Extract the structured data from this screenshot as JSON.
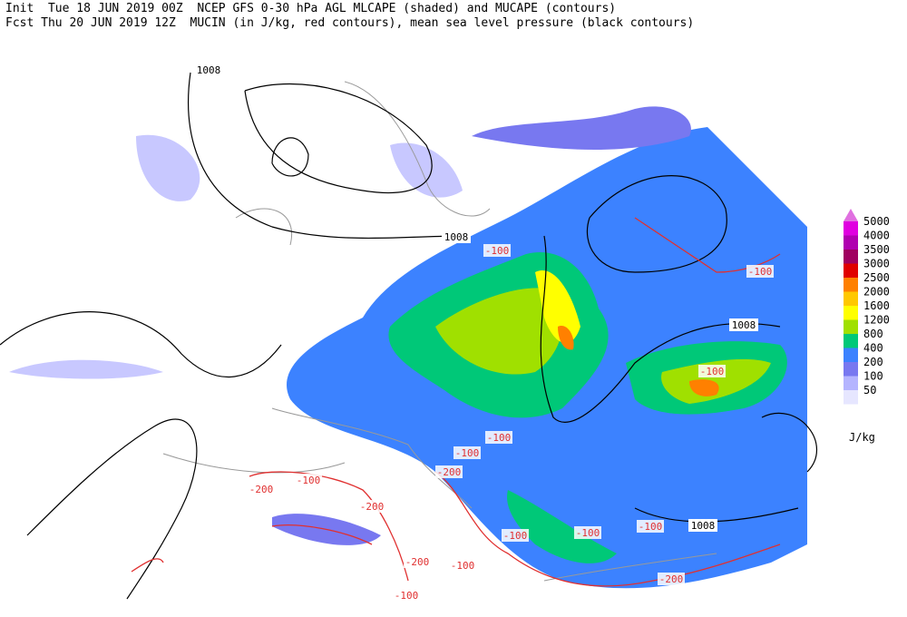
{
  "header": {
    "line1": "Init  Tue 18 JUN 2019 00Z  NCEP GFS 0-30 hPa AGL MLCAPE (shaded) and MUCAPE (contours)",
    "line2": "Fcst Thu 20 JUN 2019 12Z  MUCIN (in J/kg, red contours), mean sea level pressure (black contours)"
  },
  "legend": {
    "labels": [
      5000,
      4000,
      3500,
      3000,
      2500,
      2000,
      1600,
      1200,
      800,
      400,
      200,
      100,
      50
    ],
    "colors": [
      "#e070e0",
      "#e000e0",
      "#b000b0",
      "#a00060",
      "#e00000",
      "#ff8000",
      "#ffc800",
      "#ffff00",
      "#a0e000",
      "#00c878",
      "#3c82ff",
      "#7878f0",
      "#b4b4ff",
      "#e6e6ff"
    ],
    "unit": "J/kg"
  },
  "pressure_labels": [
    "1008",
    "1008",
    "1008",
    "1008"
  ],
  "cin_labels": [
    "-100",
    "-100",
    "-100",
    "-100",
    "-100",
    "-200",
    "-100",
    "-100",
    "-100",
    "-200",
    "-100",
    "-200",
    "-100",
    "-200",
    "-200",
    "-100"
  ]
}
